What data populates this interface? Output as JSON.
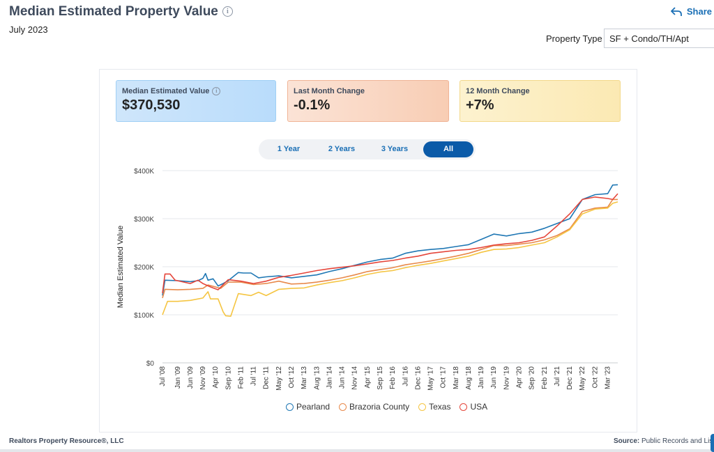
{
  "header": {
    "title": "Median Estimated Property Value",
    "subtitle": "July 2023",
    "share_label": "Share",
    "property_type_label": "Property Type",
    "property_type_value": "SF + Condo/TH/Apt"
  },
  "cards": [
    {
      "label": "Median Estimated Value",
      "value": "$370,530"
    },
    {
      "label": "Last Month Change",
      "value": "-0.1%"
    },
    {
      "label": "12 Month Change",
      "value": "+7%"
    }
  ],
  "ranges": [
    "1 Year",
    "2 Years",
    "3 Years",
    "All"
  ],
  "active_range": "All",
  "footer": {
    "left": "Realtors Property Resource®, LLC",
    "source_label": "Source:",
    "source_value": "Public Records and Lis"
  },
  "colors": {
    "Pearland": "#1f77b4",
    "Brazoria County": "#e8894a",
    "Texas": "#f5c542",
    "USA": "#e5453a"
  },
  "chart_data": {
    "type": "line",
    "title": "",
    "xlabel": "",
    "ylabel": "Median Estimated Value",
    "ylim": [
      0,
      400000
    ],
    "yticks": [
      0,
      100000,
      200000,
      300000,
      400000
    ],
    "ytick_labels": [
      "$0",
      "$100K",
      "$200K",
      "$300K",
      "$400K"
    ],
    "x_start": "2008-07",
    "x_end": "2023-07",
    "xtick_labels": [
      "Jul '08",
      "Jan '09",
      "Jun '09",
      "Nov '09",
      "Apr '10",
      "Sep '10",
      "Feb '11",
      "Jul '11",
      "Dec '11",
      "May '12",
      "Oct '12",
      "Mar '13",
      "Aug '13",
      "Jan '14",
      "Jun '14",
      "Nov '14",
      "Apr '15",
      "Sep '15",
      "Feb '16",
      "Jul '16",
      "Dec '16",
      "May '17",
      "Oct '17",
      "Mar '18",
      "Aug '18",
      "Jan '19",
      "Jun '19",
      "Nov '19",
      "Apr '20",
      "Sep '20",
      "Feb '21",
      "Jul '21",
      "Dec '21",
      "May '22",
      "Oct '22",
      "Mar '23"
    ],
    "grid": true,
    "legend_position": "bottom",
    "series": [
      {
        "name": "Pearland",
        "points": [
          [
            "2008-07",
            140000
          ],
          [
            "2008-08",
            172000
          ],
          [
            "2009-01",
            171000
          ],
          [
            "2009-06",
            169000
          ],
          [
            "2009-09",
            171000
          ],
          [
            "2009-11",
            176000
          ],
          [
            "2009-12",
            186000
          ],
          [
            "2010-01",
            172000
          ],
          [
            "2010-03",
            175000
          ],
          [
            "2010-05",
            160000
          ],
          [
            "2010-07",
            165000
          ],
          [
            "2010-09",
            171000
          ],
          [
            "2011-01",
            188000
          ],
          [
            "2011-03",
            187000
          ],
          [
            "2011-06",
            187000
          ],
          [
            "2011-09",
            177000
          ],
          [
            "2011-12",
            179000
          ],
          [
            "2012-05",
            181000
          ],
          [
            "2012-10",
            177000
          ],
          [
            "2013-03",
            180000
          ],
          [
            "2013-08",
            183000
          ],
          [
            "2014-01",
            190000
          ],
          [
            "2014-06",
            196000
          ],
          [
            "2014-11",
            203000
          ],
          [
            "2015-04",
            210000
          ],
          [
            "2015-09",
            215000
          ],
          [
            "2016-02",
            218000
          ],
          [
            "2016-07",
            228000
          ],
          [
            "2016-12",
            233000
          ],
          [
            "2017-05",
            236000
          ],
          [
            "2017-10",
            238000
          ],
          [
            "2018-03",
            242000
          ],
          [
            "2018-08",
            246000
          ],
          [
            "2019-01",
            257000
          ],
          [
            "2019-06",
            268000
          ],
          [
            "2019-11",
            264000
          ],
          [
            "2020-04",
            269000
          ],
          [
            "2020-09",
            272000
          ],
          [
            "2021-02",
            280000
          ],
          [
            "2021-07",
            290000
          ],
          [
            "2021-12",
            300000
          ],
          [
            "2022-05",
            340000
          ],
          [
            "2022-10",
            350000
          ],
          [
            "2023-03",
            352000
          ],
          [
            "2023-05",
            370000
          ],
          [
            "2023-07",
            370530
          ]
        ]
      },
      {
        "name": "Brazoria County",
        "points": [
          [
            "2008-07",
            135000
          ],
          [
            "2008-08",
            153000
          ],
          [
            "2009-01",
            152000
          ],
          [
            "2009-06",
            153000
          ],
          [
            "2009-11",
            155000
          ],
          [
            "2010-01",
            162000
          ],
          [
            "2010-04",
            158000
          ],
          [
            "2010-06",
            155000
          ],
          [
            "2010-09",
            168000
          ],
          [
            "2011-02",
            168000
          ],
          [
            "2011-07",
            163000
          ],
          [
            "2011-12",
            165000
          ],
          [
            "2012-05",
            170000
          ],
          [
            "2012-10",
            164000
          ],
          [
            "2013-03",
            165000
          ],
          [
            "2013-08",
            168000
          ],
          [
            "2014-01",
            172000
          ],
          [
            "2014-06",
            177000
          ],
          [
            "2014-11",
            183000
          ],
          [
            "2015-04",
            190000
          ],
          [
            "2015-09",
            194000
          ],
          [
            "2016-02",
            198000
          ],
          [
            "2016-07",
            204000
          ],
          [
            "2016-12",
            208000
          ],
          [
            "2017-05",
            212000
          ],
          [
            "2017-10",
            217000
          ],
          [
            "2018-03",
            222000
          ],
          [
            "2018-08",
            228000
          ],
          [
            "2019-01",
            236000
          ],
          [
            "2019-06",
            244000
          ],
          [
            "2019-11",
            244000
          ],
          [
            "2020-04",
            247000
          ],
          [
            "2020-09",
            250000
          ],
          [
            "2021-02",
            256000
          ],
          [
            "2021-07",
            265000
          ],
          [
            "2021-12",
            279000
          ],
          [
            "2022-05",
            315000
          ],
          [
            "2022-10",
            322000
          ],
          [
            "2023-03",
            324000
          ],
          [
            "2023-05",
            340000
          ],
          [
            "2023-07",
            340000
          ]
        ]
      },
      {
        "name": "Texas",
        "points": [
          [
            "2008-07",
            100000
          ],
          [
            "2008-09",
            128000
          ],
          [
            "2009-01",
            128000
          ],
          [
            "2009-06",
            130000
          ],
          [
            "2009-11",
            135000
          ],
          [
            "2010-01",
            148000
          ],
          [
            "2010-02",
            133000
          ],
          [
            "2010-05",
            133000
          ],
          [
            "2010-07",
            106000
          ],
          [
            "2010-08",
            98000
          ],
          [
            "2010-10",
            97000
          ],
          [
            "2011-01",
            144000
          ],
          [
            "2011-06",
            140000
          ],
          [
            "2011-09",
            147000
          ],
          [
            "2011-12",
            140000
          ],
          [
            "2012-05",
            153000
          ],
          [
            "2012-10",
            155000
          ],
          [
            "2013-03",
            156000
          ],
          [
            "2013-08",
            162000
          ],
          [
            "2014-01",
            167000
          ],
          [
            "2014-06",
            171000
          ],
          [
            "2014-11",
            177000
          ],
          [
            "2015-04",
            184000
          ],
          [
            "2015-09",
            189000
          ],
          [
            "2016-02",
            192000
          ],
          [
            "2016-07",
            198000
          ],
          [
            "2016-12",
            203000
          ],
          [
            "2017-05",
            207000
          ],
          [
            "2017-10",
            212000
          ],
          [
            "2018-03",
            217000
          ],
          [
            "2018-08",
            222000
          ],
          [
            "2019-01",
            230000
          ],
          [
            "2019-06",
            236000
          ],
          [
            "2019-11",
            237000
          ],
          [
            "2020-04",
            240000
          ],
          [
            "2020-09",
            245000
          ],
          [
            "2021-02",
            250000
          ],
          [
            "2021-07",
            262000
          ],
          [
            "2021-12",
            277000
          ],
          [
            "2022-05",
            310000
          ],
          [
            "2022-10",
            320000
          ],
          [
            "2023-03",
            322000
          ],
          [
            "2023-05",
            332000
          ],
          [
            "2023-07",
            335000
          ]
        ]
      },
      {
        "name": "USA",
        "points": [
          [
            "2008-07",
            145000
          ],
          [
            "2008-08",
            185000
          ],
          [
            "2008-10",
            185000
          ],
          [
            "2008-12",
            172000
          ],
          [
            "2009-06",
            165000
          ],
          [
            "2009-09",
            172000
          ],
          [
            "2009-11",
            165000
          ],
          [
            "2010-02",
            158000
          ],
          [
            "2010-05",
            152000
          ],
          [
            "2010-09",
            173000
          ],
          [
            "2011-02",
            170000
          ],
          [
            "2011-07",
            165000
          ],
          [
            "2011-12",
            170000
          ],
          [
            "2012-05",
            178000
          ],
          [
            "2012-10",
            182000
          ],
          [
            "2013-03",
            187000
          ],
          [
            "2013-08",
            192000
          ],
          [
            "2014-01",
            196000
          ],
          [
            "2014-06",
            199000
          ],
          [
            "2014-11",
            202000
          ],
          [
            "2015-04",
            206000
          ],
          [
            "2015-09",
            210000
          ],
          [
            "2016-02",
            213000
          ],
          [
            "2016-07",
            218000
          ],
          [
            "2016-12",
            222000
          ],
          [
            "2017-05",
            228000
          ],
          [
            "2017-10",
            231000
          ],
          [
            "2018-03",
            234000
          ],
          [
            "2018-08",
            236000
          ],
          [
            "2019-01",
            240000
          ],
          [
            "2019-06",
            245000
          ],
          [
            "2019-11",
            248000
          ],
          [
            "2020-04",
            250000
          ],
          [
            "2020-09",
            255000
          ],
          [
            "2021-02",
            262000
          ],
          [
            "2021-07",
            285000
          ],
          [
            "2021-12",
            310000
          ],
          [
            "2022-05",
            340000
          ],
          [
            "2022-10",
            345000
          ],
          [
            "2023-03",
            342000
          ],
          [
            "2023-05",
            340000
          ],
          [
            "2023-07",
            352000
          ]
        ]
      }
    ]
  }
}
